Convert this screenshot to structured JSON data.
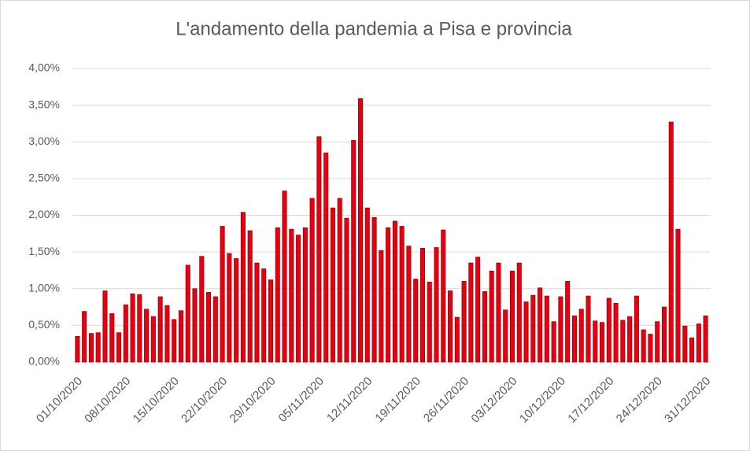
{
  "chart_data": {
    "type": "bar",
    "title": "L'andamento della pandemia a Pisa e provincia",
    "categories": [
      "01/10/2020",
      null,
      null,
      null,
      null,
      null,
      null,
      "08/10/2020",
      null,
      null,
      null,
      null,
      null,
      null,
      "15/10/2020",
      null,
      null,
      null,
      null,
      null,
      null,
      "22/10/2020",
      null,
      null,
      null,
      null,
      null,
      null,
      "29/10/2020",
      null,
      null,
      null,
      null,
      null,
      null,
      "05/11/2020",
      null,
      null,
      null,
      null,
      null,
      null,
      "12/11/2020",
      null,
      null,
      null,
      null,
      null,
      null,
      "19/11/2020",
      null,
      null,
      null,
      null,
      null,
      null,
      "26/11/2020",
      null,
      null,
      null,
      null,
      null,
      null,
      "03/12/2020",
      null,
      null,
      null,
      null,
      null,
      null,
      "10/12/2020",
      null,
      null,
      null,
      null,
      null,
      null,
      "17/12/2020",
      null,
      null,
      null,
      null,
      null,
      null,
      "24/12/2020",
      null,
      null,
      null,
      null,
      null,
      null,
      "31/12/2020"
    ],
    "values": [
      0.35,
      0.69,
      0.39,
      0.4,
      0.97,
      0.66,
      0.4,
      0.78,
      0.93,
      0.92,
      0.72,
      0.62,
      0.89,
      0.77,
      0.58,
      0.7,
      1.32,
      1.0,
      1.44,
      0.95,
      0.89,
      1.85,
      1.48,
      1.41,
      2.04,
      1.79,
      1.35,
      1.27,
      1.12,
      1.83,
      2.33,
      1.81,
      1.73,
      1.83,
      2.23,
      3.07,
      2.85,
      2.1,
      2.23,
      1.96,
      3.02,
      3.59,
      2.1,
      1.97,
      1.52,
      1.83,
      1.92,
      1.85,
      1.58,
      1.13,
      1.55,
      1.09,
      1.56,
      1.8,
      0.97,
      0.61,
      1.1,
      1.35,
      1.43,
      0.96,
      1.24,
      1.35,
      0.71,
      1.24,
      1.35,
      0.82,
      0.91,
      1.01,
      0.9,
      0.55,
      0.89,
      1.1,
      0.63,
      0.72,
      0.9,
      0.56,
      0.54,
      0.87,
      0.8,
      0.57,
      0.62,
      0.9,
      0.44,
      0.38,
      0.55,
      0.75,
      3.27,
      1.81,
      0.49,
      0.33,
      0.52,
      0.63
    ],
    "color": "#e60012",
    "ylim": [
      0,
      4
    ],
    "yticks": [
      {
        "value": 0,
        "label": "0,00%"
      },
      {
        "value": 0.5,
        "label": "0,50%"
      },
      {
        "value": 1,
        "label": "1,00%"
      },
      {
        "value": 1.5,
        "label": "1,50%"
      },
      {
        "value": 2,
        "label": "2,00%"
      },
      {
        "value": 2.5,
        "label": "2,50%"
      },
      {
        "value": 3,
        "label": "3,00%"
      },
      {
        "value": 3.5,
        "label": "3,50%"
      },
      {
        "value": 4,
        "label": "4,00%"
      }
    ],
    "grid": true
  }
}
